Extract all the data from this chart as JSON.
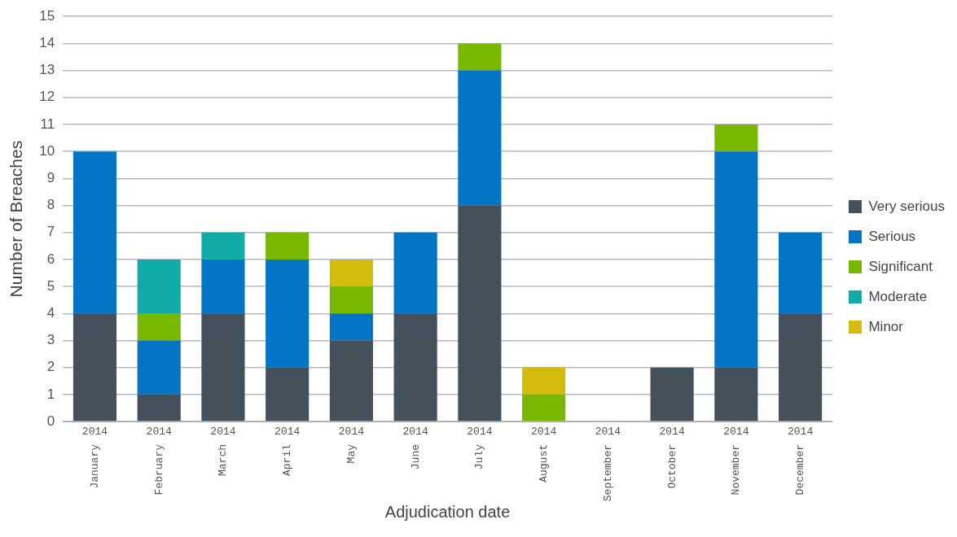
{
  "chart_data": {
    "type": "bar",
    "stacked": true,
    "xlabel": "Adjudication date",
    "ylabel": "Number of Breaches",
    "categories": [
      "2014 January",
      "2014 February",
      "2014 March",
      "2014 April",
      "2014 May",
      "2014 June",
      "2014 July",
      "2014 August",
      "2014 September",
      "2014 October",
      "2014 November",
      "2014 December"
    ],
    "series": [
      {
        "name": "Very serious",
        "color": "#44505a",
        "values": [
          4,
          1,
          4,
          2,
          3,
          4,
          8,
          0,
          0,
          2,
          2,
          4
        ]
      },
      {
        "name": "Serious",
        "color": "#0474c4",
        "values": [
          6,
          2,
          2,
          4,
          1,
          3,
          5,
          0,
          0,
          0,
          8,
          3
        ]
      },
      {
        "name": "Significant",
        "color": "#78b800",
        "values": [
          0,
          1,
          0,
          1,
          1,
          0,
          1,
          1,
          0,
          0,
          1,
          0
        ]
      },
      {
        "name": "Moderate",
        "color": "#12aca8",
        "values": [
          0,
          2,
          1,
          0,
          0,
          0,
          0,
          0,
          0,
          0,
          0,
          0
        ]
      },
      {
        "name": "Minor",
        "color": "#d4bc0c",
        "values": [
          0,
          0,
          0,
          0,
          1,
          0,
          0,
          1,
          0,
          0,
          0,
          0
        ]
      }
    ],
    "ylim": [
      0,
      15
    ],
    "yticks": [
      0,
      1,
      2,
      3,
      4,
      5,
      6,
      7,
      8,
      9,
      10,
      11,
      12,
      13,
      14,
      15
    ],
    "grid": "y",
    "legend": "right"
  }
}
